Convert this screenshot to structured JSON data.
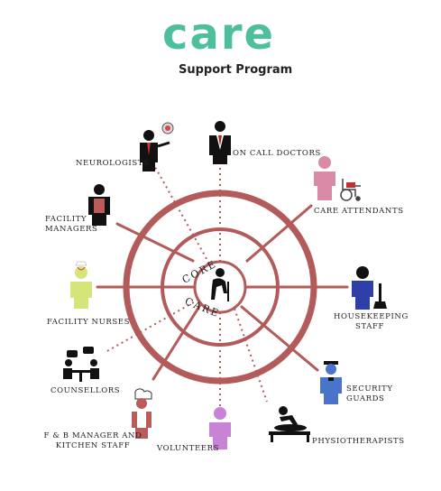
{
  "logo": {
    "text": "care",
    "subtitle": "Support Program"
  },
  "core": {
    "top": "CORE",
    "bottom": "CARE"
  },
  "roles": {
    "neurologists": "Neurologists",
    "on_call_doctors": "On call Doctors",
    "care_attendants": "Care Attendants",
    "facility_managers": "Facility Managers",
    "housekeeping": "Housekeeping Staff",
    "facility_nurses": "Facility Nurses",
    "counsellors": "Counsellors",
    "security": "Security Guards",
    "fb_manager": "F & B Manager and Kitchen Staff",
    "volunteers": "Volunteers",
    "physiotherapists": "Physiotherapists"
  },
  "colors": {
    "accent": "#4dbf9d",
    "ring": "#b35a5a",
    "attendant": "#d98aa6",
    "nurse": "#d6e57a",
    "housekeeping": "#2f3fa8",
    "security": "#4a74c9",
    "volunteer": "#c983d6",
    "chef": "#b85c5c"
  }
}
